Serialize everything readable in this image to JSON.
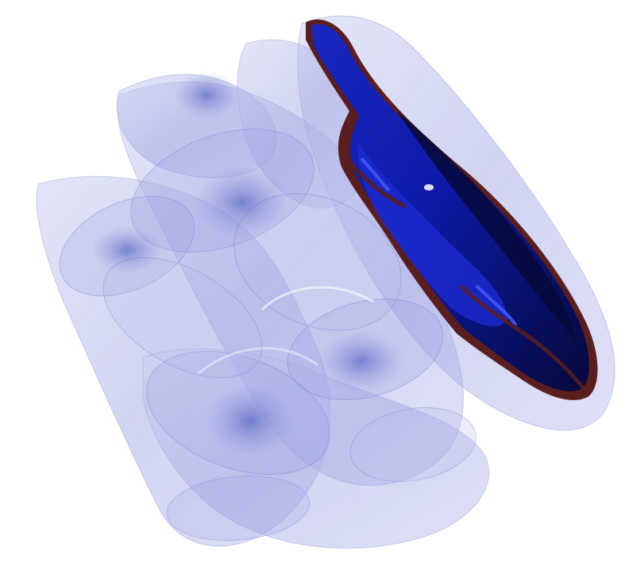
{
  "scene": {
    "background_color": "#ffffff",
    "translucent_surface_color": "#7a84d6",
    "opaque_surface_color": "#0d1aa8",
    "surface_dark_color": "#05093a",
    "edge_color": "#5a1e1e",
    "highlight_color": "#c8cdf2"
  }
}
